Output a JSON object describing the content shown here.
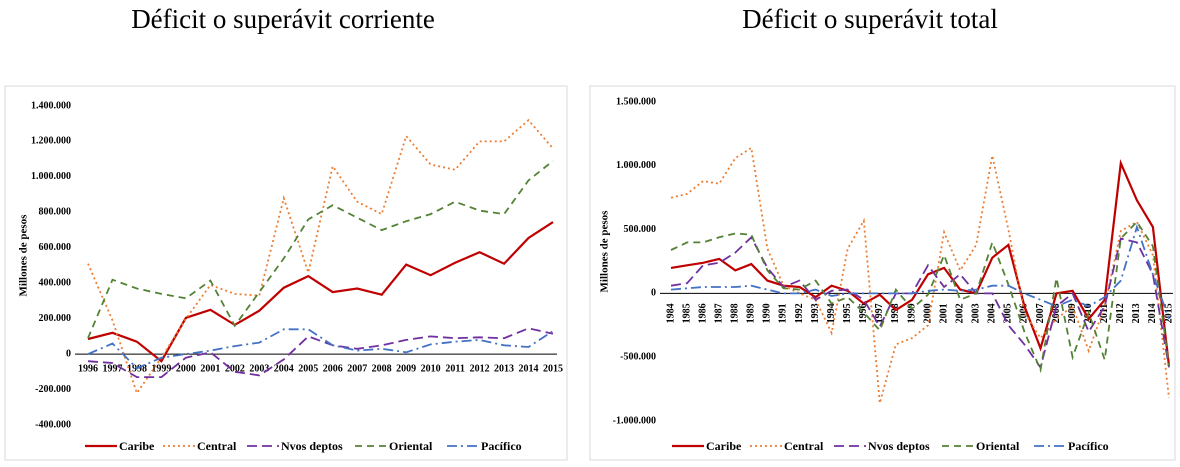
{
  "chart_data": [
    {
      "type": "line",
      "title": "Déficit o superávit corriente",
      "y_label": "Millones de pesos",
      "categories": [
        "1996",
        "1997",
        "1998",
        "1999",
        "2000",
        "2001",
        "2002",
        "2003",
        "2004",
        "2005",
        "2006",
        "2007",
        "2008",
        "2009",
        "2010",
        "2011",
        "2012",
        "2013",
        "2014",
        "2015"
      ],
      "ylim": [
        -400000,
        1400000
      ],
      "yticks": [
        {
          "value": -400000,
          "label": "-400.000"
        },
        {
          "value": -200000,
          "label": "-200.000"
        },
        0,
        {
          "value": 200000,
          "label": "200.000"
        },
        {
          "value": 400000,
          "label": "400.000"
        },
        {
          "value": 600000,
          "label": "600.000"
        },
        {
          "value": 800000,
          "label": "800.000"
        },
        {
          "value": 1000000,
          "label": "1.000.000"
        },
        {
          "value": 1200000,
          "label": "1.200.000"
        },
        {
          "value": 1400000,
          "label": "1.400.000"
        }
      ],
      "grid": false,
      "legend": "bottom",
      "series": [
        {
          "name": "Caribe",
          "color": "#c00000",
          "dash": "solid",
          "values": [
            85000,
            120000,
            70000,
            -40000,
            205000,
            250000,
            165000,
            245000,
            375000,
            440000,
            350000,
            370000,
            335000,
            505000,
            445000,
            515000,
            575000,
            510000,
            655000,
            745000
          ]
        },
        {
          "name": "Central",
          "color": "#ed7d31",
          "dash": "dotted",
          "values": [
            510000,
            190000,
            -220000,
            -20000,
            200000,
            390000,
            340000,
            330000,
            880000,
            460000,
            1060000,
            860000,
            790000,
            1230000,
            1070000,
            1040000,
            1200000,
            1200000,
            1320000,
            1160000
          ]
        },
        {
          "name": "Nvos deptos",
          "color": "#7030a0",
          "dash": "longdash",
          "values": [
            -40000,
            -50000,
            -130000,
            -130000,
            -20000,
            10000,
            -100000,
            -120000,
            -30000,
            100000,
            50000,
            30000,
            50000,
            80000,
            100000,
            90000,
            95000,
            90000,
            145000,
            115000
          ]
        },
        {
          "name": "Oriental",
          "color": "#548235",
          "dash": "dashed",
          "values": [
            90000,
            420000,
            370000,
            340000,
            315000,
            415000,
            160000,
            350000,
            540000,
            760000,
            840000,
            770000,
            700000,
            750000,
            790000,
            860000,
            810000,
            790000,
            980000,
            1090000
          ]
        },
        {
          "name": "Pacífico",
          "color": "#4472c4",
          "dash": "dashdot",
          "values": [
            0,
            60000,
            -80000,
            -20000,
            0,
            20000,
            45000,
            65000,
            140000,
            140000,
            50000,
            20000,
            30000,
            10000,
            55000,
            70000,
            80000,
            50000,
            40000,
            130000
          ]
        }
      ]
    },
    {
      "type": "line",
      "title": "Déficit o superávit total",
      "y_label": "Millones de pesos",
      "categories": [
        "1984",
        "1985",
        "1986",
        "1987",
        "1988",
        "1989",
        "1990",
        "1991",
        "1992",
        "1993",
        "1994",
        "1995",
        "1996",
        "1997",
        "1998",
        "1999",
        "2000",
        "2001",
        "2002",
        "2003",
        "2004",
        "2005",
        "2006",
        "2007",
        "2008",
        "2009",
        "2010",
        "2011",
        "2012",
        "2013",
        "2014",
        "2015"
      ],
      "ylim": [
        -1000000,
        1500000
      ],
      "yticks": [
        {
          "value": -1000000,
          "label": "-1.000.000"
        },
        {
          "value": -500000,
          "label": "-500.000"
        },
        0,
        {
          "value": 500000,
          "label": "500.000"
        },
        {
          "value": 1000000,
          "label": "1.000.000"
        },
        {
          "value": 1500000,
          "label": "1.500.000"
        }
      ],
      "grid": false,
      "legend": "bottom",
      "series": [
        {
          "name": "Caribe",
          "color": "#c00000",
          "dash": "solid",
          "values": [
            200000,
            220000,
            240000,
            270000,
            180000,
            230000,
            100000,
            60000,
            50000,
            -30000,
            60000,
            20000,
            -80000,
            -10000,
            -130000,
            -50000,
            150000,
            200000,
            30000,
            0,
            280000,
            380000,
            -100000,
            -430000,
            0,
            20000,
            -200000,
            -50000,
            1020000,
            730000,
            520000,
            -570000
          ]
        },
        {
          "name": "Central",
          "color": "#ed7d31",
          "dash": "dotted",
          "values": [
            750000,
            780000,
            880000,
            860000,
            1060000,
            1140000,
            350000,
            60000,
            0,
            -50000,
            -310000,
            350000,
            570000,
            -860000,
            -400000,
            -350000,
            -250000,
            480000,
            180000,
            380000,
            1080000,
            500000,
            -150000,
            -350000,
            -200000,
            -100000,
            -450000,
            -100000,
            490000,
            560000,
            300000,
            -820000
          ]
        },
        {
          "name": "Nvos deptos",
          "color": "#7030a0",
          "dash": "longdash",
          "values": [
            60000,
            80000,
            220000,
            240000,
            320000,
            440000,
            200000,
            50000,
            100000,
            -50000,
            20000,
            30000,
            -50000,
            -260000,
            0,
            0,
            220000,
            50000,
            150000,
            0,
            0,
            -250000,
            -400000,
            -580000,
            -100000,
            0,
            -300000,
            -100000,
            430000,
            400000,
            150000,
            -580000
          ]
        },
        {
          "name": "Oriental",
          "color": "#548235",
          "dash": "dashed",
          "values": [
            340000,
            400000,
            400000,
            440000,
            470000,
            460000,
            180000,
            40000,
            30000,
            100000,
            -80000,
            -30000,
            -150000,
            -290000,
            30000,
            -120000,
            -10000,
            300000,
            -50000,
            0,
            400000,
            70000,
            -300000,
            -600000,
            120000,
            -500000,
            -150000,
            -520000,
            430000,
            560000,
            370000,
            -570000
          ]
        },
        {
          "name": "Pacífico",
          "color": "#4472c4",
          "dash": "dashdot",
          "values": [
            30000,
            40000,
            50000,
            50000,
            50000,
            60000,
            30000,
            0,
            0,
            30000,
            -20000,
            0,
            0,
            0,
            0,
            0,
            20000,
            30000,
            20000,
            30000,
            60000,
            60000,
            0,
            -50000,
            -100000,
            -50000,
            -100000,
            -30000,
            100000,
            520000,
            150000,
            -200000
          ]
        }
      ]
    }
  ]
}
